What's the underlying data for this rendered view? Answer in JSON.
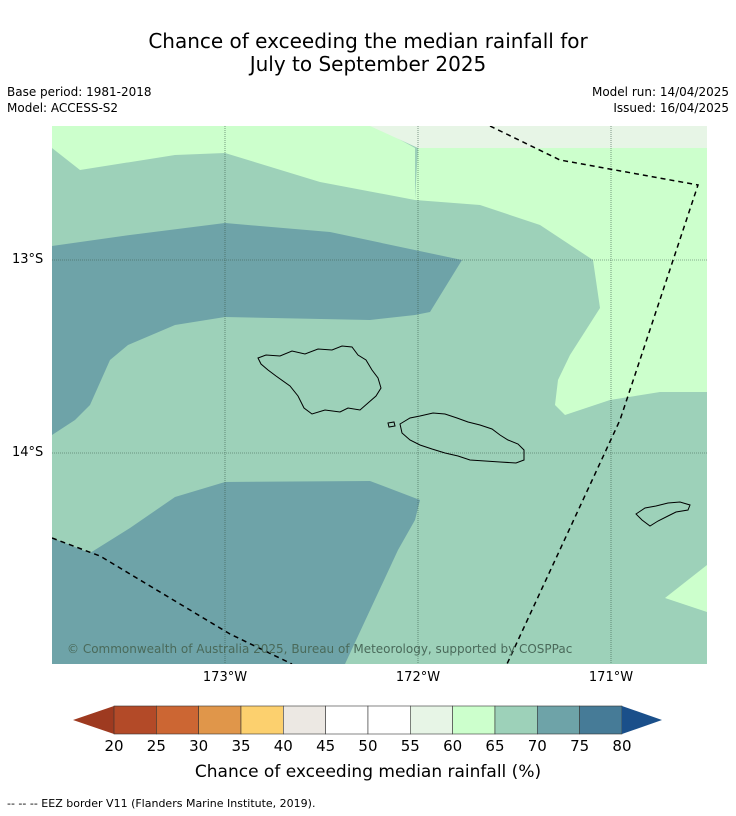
{
  "title_line1": "Chance of exceeding the median rainfall for",
  "title_line2": "July to September 2025",
  "base_period": "Base period: 1981-2018",
  "model": "Model: ACCESS-S2",
  "model_run": "Model run: 14/04/2025",
  "issued": "Issued: 16/04/2025",
  "lat_labels": [
    "13°S",
    "14°S"
  ],
  "lon_labels": [
    "173°W",
    "172°W",
    "171°W"
  ],
  "copyright": "© Commonwealth of Australia 2025, Bureau of Meteorology, supported by COSPPac",
  "colorbar": {
    "label": "Chance of exceeding median rainfall (%)",
    "ticks": [
      "20",
      "25",
      "30",
      "35",
      "40",
      "45",
      "50",
      "55",
      "60",
      "65",
      "70",
      "75",
      "80"
    ],
    "colors": [
      "#b34a28",
      "#cc6633",
      "#e0964a",
      "#fcd06e",
      "#ece8e3",
      "#ffffff",
      "#ffffff",
      "#e7f5e6",
      "#ccffcc",
      "#9dd1b9",
      "#6ea3a8",
      "#467b97"
    ],
    "low_extension_color": "#9e3a20",
    "high_extension_color": "#1a4f8a"
  },
  "footer": "--  --  -- EEZ border V11 (Flanders Marine Institute, 2019)."
}
